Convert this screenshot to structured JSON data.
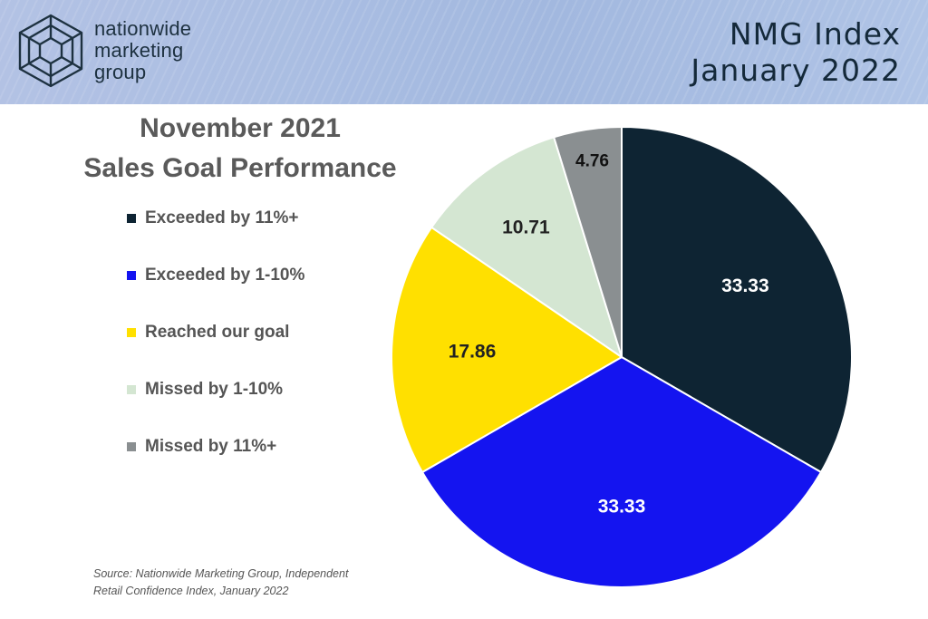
{
  "header": {
    "logo_lines": [
      "nationwide",
      "marketing",
      "group"
    ],
    "title_lines": [
      "NMG Index",
      "January 2022"
    ]
  },
  "chart_data": {
    "type": "pie",
    "title_lines": [
      "November 2021",
      "Sales Goal Performance"
    ],
    "slices": [
      {
        "label": "Exceeded by 11%+",
        "value": 33.33,
        "color": "#0e2433",
        "label_color": "#ffffff"
      },
      {
        "label": "Exceeded by 1-10%",
        "value": 33.33,
        "color": "#1414f0",
        "label_color": "#ffffff"
      },
      {
        "label": "Reached our goal",
        "value": 17.86,
        "color": "#ffe000",
        "label_color": "#222222"
      },
      {
        "label": "Missed by 1-10%",
        "value": 10.71,
        "color": "#d4e6d2",
        "label_color": "#222222"
      },
      {
        "label": "Missed by 11%+",
        "value": 4.76,
        "color": "#8a8f91",
        "label_color": "#111111"
      }
    ],
    "start": "12 o'clock",
    "direction": "clockwise",
    "legend_position": "left"
  },
  "source_lines": [
    "Source: Nationwide Marketing Group, Independent",
    "Retail Confidence Index, January 2022"
  ]
}
